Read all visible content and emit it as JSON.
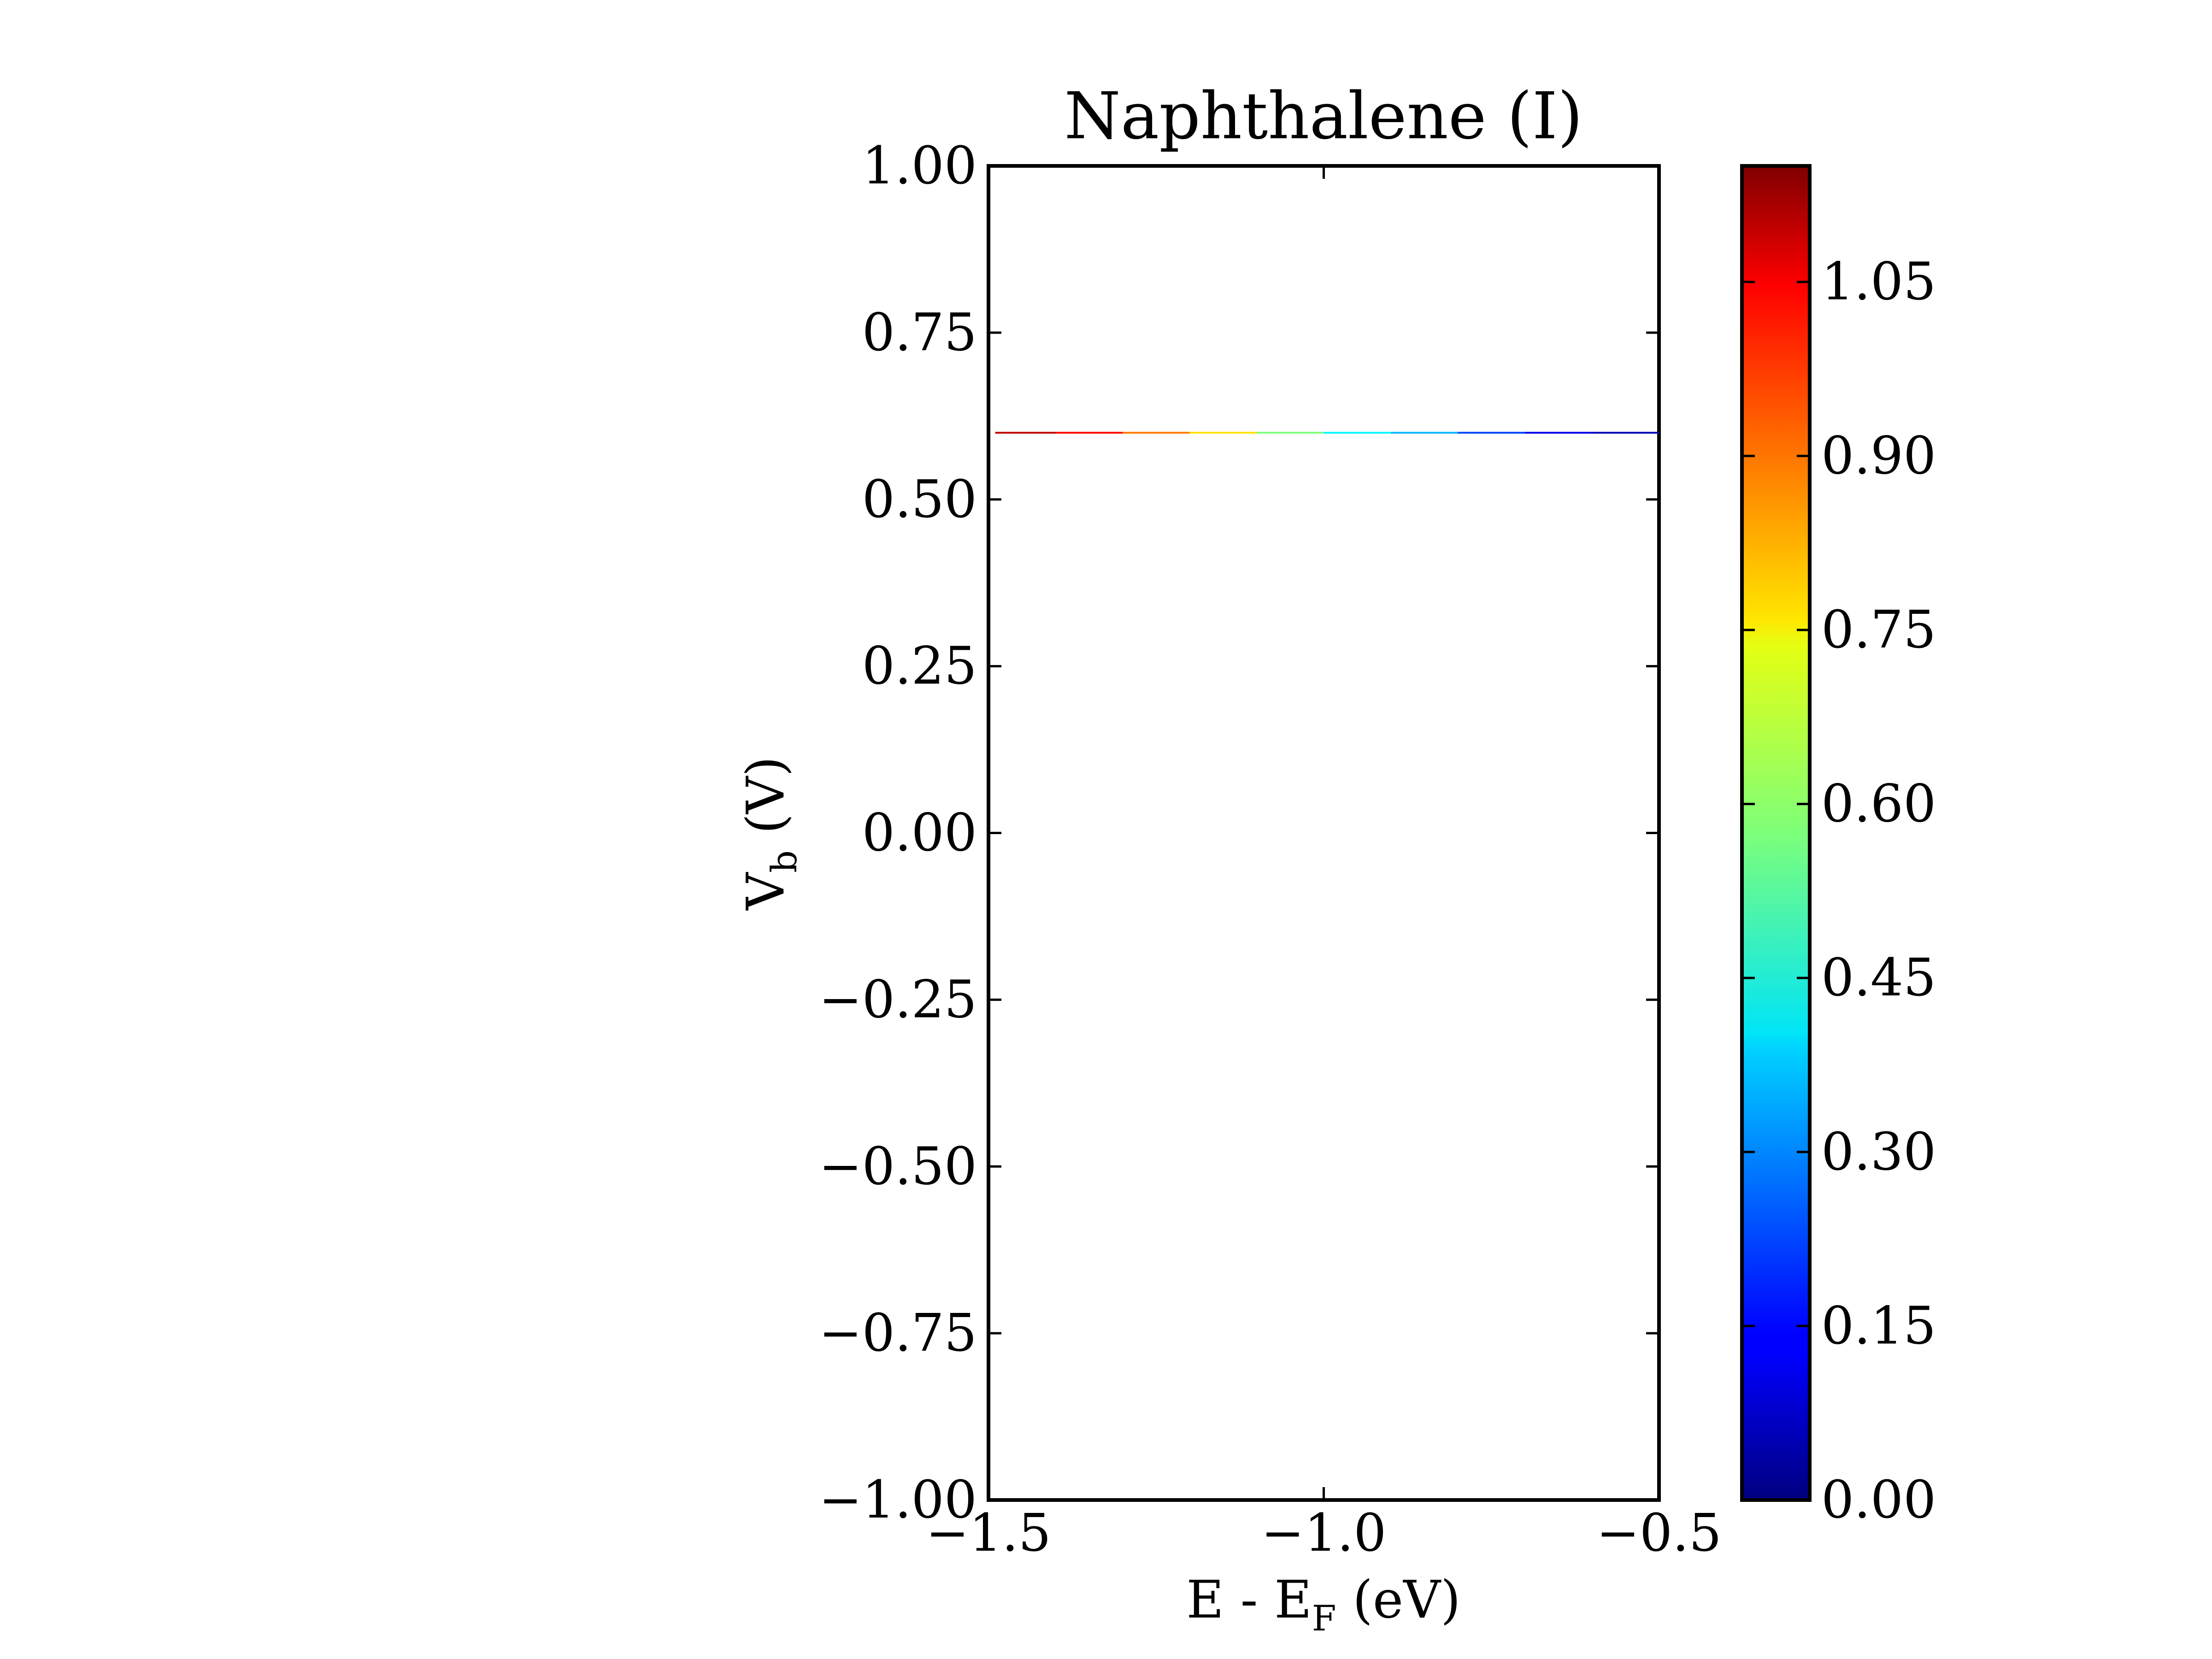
{
  "chart_data": {
    "type": "line",
    "title": "Naphthalene (I)",
    "xlabel": {
      "main": "E - E",
      "sub": "F",
      "tail": " (eV)"
    },
    "ylabel": {
      "main": "V",
      "sub": "b",
      "tail": " (V)"
    },
    "xlim": [
      -1.5,
      -0.5
    ],
    "ylim": [
      -1.0,
      1.0
    ],
    "x_ticks": [
      -1.5,
      -1.0,
      -0.5
    ],
    "x_tick_labels": [
      "−1.5",
      "−1.0",
      "−0.5"
    ],
    "y_ticks": [
      1.0,
      0.75,
      0.5,
      0.25,
      0.0,
      -0.25,
      -0.5,
      -0.75,
      -1.0
    ],
    "y_tick_labels": [
      "1.00",
      "0.75",
      "0.50",
      "0.25",
      "0.00",
      "−0.25",
      "−0.50",
      "−0.75",
      "−1.00"
    ],
    "grid": false,
    "line": {
      "y": 0.6,
      "x": [
        -1.49,
        -1.4,
        -1.3,
        -1.2,
        -1.1,
        -1.0,
        -0.9,
        -0.8,
        -0.7,
        -0.6,
        -0.5
      ],
      "c": [
        1.1,
        1.05,
        0.93,
        0.8,
        0.7,
        0.45,
        0.4,
        0.3,
        0.15,
        0.08,
        0.05
      ]
    },
    "colorbar": {
      "colormap": "jet",
      "range": [
        0.0,
        1.15
      ],
      "ticks": [
        0.0,
        0.15,
        0.3,
        0.45,
        0.6,
        0.75,
        0.9,
        1.05
      ],
      "tick_labels": [
        "0.00",
        "0.15",
        "0.30",
        "0.45",
        "0.60",
        "0.75",
        "0.90",
        "1.05"
      ]
    }
  }
}
